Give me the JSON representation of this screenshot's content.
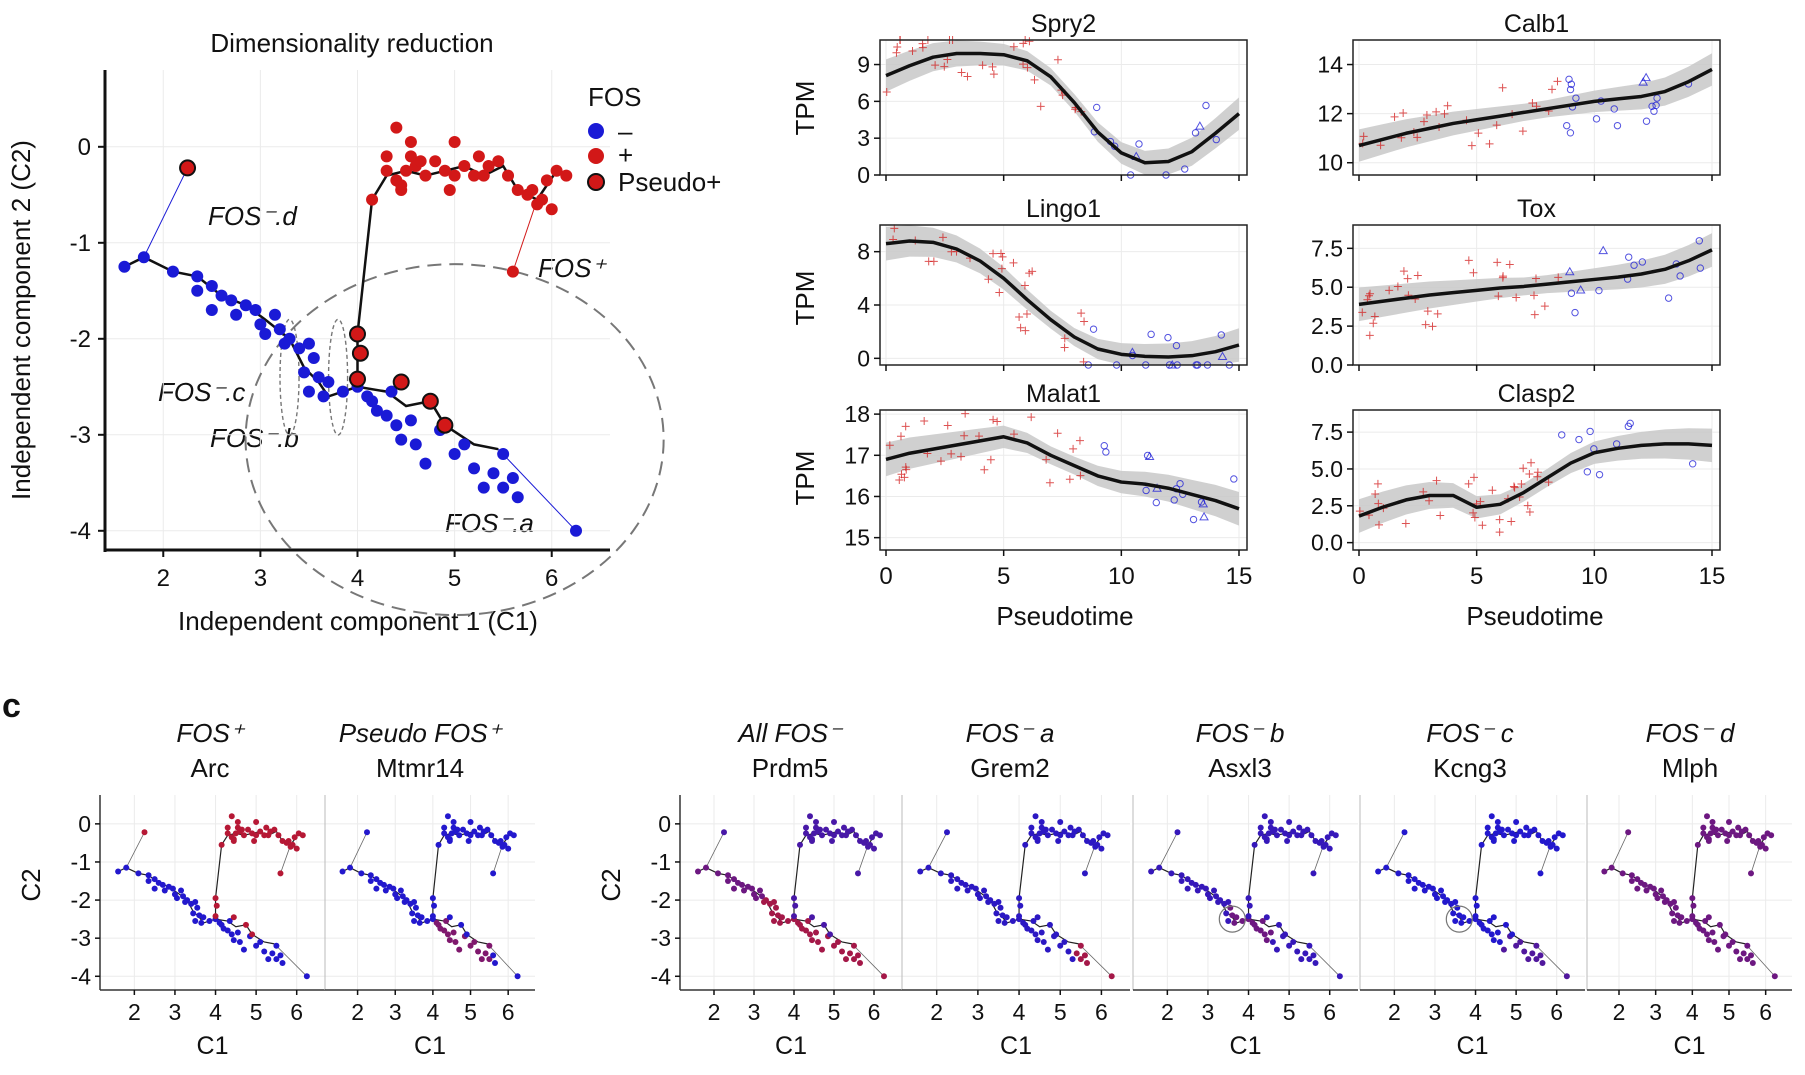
{
  "colors": {
    "fos_neg": "#1a1ad6",
    "fos_pos": "#d21818",
    "smooth": "#111111",
    "ribbon": "#c8c8c8",
    "panel_border": "#222222",
    "grid": "#ebebeb"
  },
  "panel_label_c": "c",
  "panel_a": {
    "title": "Dimensionality reduction",
    "xlabel": "Independent component 1 (C1)",
    "ylabel": "Independent component 2 (C2)",
    "legend": {
      "title": "FOS",
      "items": [
        "–",
        "+",
        "Pseudo+"
      ]
    },
    "annotations": {
      "d": "FOS⁻.d",
      "c": "FOS⁻.c",
      "b": "FOS⁻.b",
      "a": "FOS⁻.a",
      "pos": "FOS⁺"
    }
  },
  "panel_b": {
    "xlabel": "Pseudotime",
    "ylabel": "TPM"
  },
  "panel_c": {
    "xlabel": "C1",
    "ylabel": "C2",
    "cols": [
      {
        "top": "FOS⁺",
        "gene": "Arc"
      },
      {
        "top": "Pseudo FOS⁺",
        "gene": "Mtmr14"
      },
      {
        "top": "All FOS⁻",
        "gene": "Prdm5"
      },
      {
        "top": "FOS⁻ a",
        "gene": "Grem2"
      },
      {
        "top": "FOS⁻ b",
        "gene": "Asxl3"
      },
      {
        "top": "FOS⁻ c",
        "gene": "Kcng3"
      },
      {
        "top": "FOS⁻ d",
        "gene": "Mlph"
      }
    ]
  },
  "chart_data": [
    {
      "type": "scatter",
      "title": "Dimensionality reduction",
      "xlabel": "Independent component 1 (C1)",
      "ylabel": "Independent component 2 (C2)",
      "xlim": [
        1.4,
        6.6
      ],
      "ylim": [
        -4.2,
        0.8
      ],
      "xticks": [
        2,
        3,
        4,
        5,
        6
      ],
      "yticks": [
        0,
        -1,
        -2,
        -3,
        -4
      ],
      "legend_position": "top-right",
      "series": [
        {
          "name": "–",
          "points": [
            [
              1.6,
              -1.25
            ],
            [
              1.8,
              -1.15
            ],
            [
              2.1,
              -1.3
            ],
            [
              2.35,
              -1.35
            ],
            [
              2.35,
              -1.5
            ],
            [
              2.5,
              -1.45
            ],
            [
              2.5,
              -1.7
            ],
            [
              2.6,
              -1.55
            ],
            [
              2.7,
              -1.6
            ],
            [
              2.75,
              -1.75
            ],
            [
              2.85,
              -1.65
            ],
            [
              2.95,
              -1.7
            ],
            [
              3.0,
              -1.85
            ],
            [
              3.05,
              -1.95
            ],
            [
              3.15,
              -1.75
            ],
            [
              3.2,
              -1.9
            ],
            [
              3.25,
              -2.05
            ],
            [
              3.3,
              -2.0
            ],
            [
              3.4,
              -2.1
            ],
            [
              3.45,
              -2.35
            ],
            [
              3.5,
              -2.05
            ],
            [
              3.55,
              -2.2
            ],
            [
              3.6,
              -2.4
            ],
            [
              3.5,
              -2.55
            ],
            [
              3.65,
              -2.6
            ],
            [
              3.7,
              -2.45
            ],
            [
              3.85,
              -2.55
            ],
            [
              4.0,
              -2.5
            ],
            [
              4.1,
              -2.6
            ],
            [
              4.15,
              -2.65
            ],
            [
              4.2,
              -2.75
            ],
            [
              4.3,
              -2.8
            ],
            [
              4.35,
              -2.55
            ],
            [
              4.4,
              -2.9
            ],
            [
              4.45,
              -3.05
            ],
            [
              4.55,
              -2.85
            ],
            [
              4.6,
              -3.1
            ],
            [
              4.7,
              -3.3
            ],
            [
              4.85,
              -2.95
            ],
            [
              5.0,
              -3.2
            ],
            [
              5.1,
              -3.1
            ],
            [
              5.2,
              -3.35
            ],
            [
              5.3,
              -3.55
            ],
            [
              5.4,
              -3.4
            ],
            [
              5.5,
              -3.55
            ],
            [
              5.6,
              -3.45
            ],
            [
              5.65,
              -3.65
            ],
            [
              5.5,
              -3.2
            ],
            [
              6.25,
              -4.0
            ]
          ]
        },
        {
          "name": "+",
          "points": [
            [
              4.15,
              -0.55
            ],
            [
              4.3,
              -0.25
            ],
            [
              4.4,
              -0.35
            ],
            [
              4.45,
              -0.4
            ],
            [
              4.5,
              -0.25
            ],
            [
              4.55,
              -0.1
            ],
            [
              4.6,
              -0.2
            ],
            [
              4.7,
              -0.3
            ],
            [
              4.8,
              -0.15
            ],
            [
              4.9,
              -0.25
            ],
            [
              5.0,
              0.05
            ],
            [
              5.1,
              -0.2
            ],
            [
              5.2,
              -0.3
            ],
            [
              5.25,
              -0.1
            ],
            [
              5.3,
              -0.3
            ],
            [
              5.45,
              -0.15
            ],
            [
              5.55,
              -0.3
            ],
            [
              5.65,
              -0.45
            ],
            [
              5.75,
              -0.5
            ],
            [
              5.85,
              -0.6
            ],
            [
              5.95,
              -0.35
            ],
            [
              6.05,
              -0.25
            ],
            [
              6.15,
              -0.3
            ],
            [
              4.3,
              -0.1
            ],
            [
              4.4,
              0.2
            ],
            [
              4.55,
              0.05
            ],
            [
              5.6,
              -1.3
            ],
            [
              5.35,
              -0.2
            ],
            [
              4.95,
              -0.45
            ],
            [
              4.45,
              -0.45
            ],
            [
              5.8,
              -0.45
            ],
            [
              5.0,
              -0.3
            ],
            [
              4.65,
              -0.15
            ],
            [
              5.9,
              -0.55
            ],
            [
              6.0,
              -0.65
            ]
          ]
        },
        {
          "name": "Pseudo+",
          "points": [
            [
              2.25,
              -0.22
            ],
            [
              4.0,
              -1.95
            ],
            [
              4.03,
              -2.15
            ],
            [
              4.0,
              -2.42
            ],
            [
              4.45,
              -2.45
            ],
            [
              4.75,
              -2.65
            ],
            [
              4.9,
              -2.9
            ]
          ]
        }
      ]
    },
    {
      "type": "scatter",
      "title": "Spry2",
      "xlabel": "",
      "ylabel": "TPM",
      "xlim": [
        0,
        15
      ],
      "ylim": [
        0,
        11
      ],
      "yticks": [
        0,
        3,
        6,
        9
      ],
      "series": [
        {
          "name": "smooth",
          "x": [
            0,
            1,
            2,
            3,
            4,
            5,
            6,
            7,
            8,
            9,
            10,
            11,
            12,
            13,
            14,
            15
          ],
          "y": [
            8.1,
            8.9,
            9.6,
            9.9,
            9.9,
            9.8,
            9.3,
            8.0,
            5.9,
            3.5,
            1.8,
            1.0,
            1.1,
            1.9,
            3.4,
            5.0
          ]
        }
      ]
    },
    {
      "type": "scatter",
      "title": "Calb1",
      "xlabel": "",
      "ylabel": "",
      "xlim": [
        0,
        15
      ],
      "ylim": [
        9.5,
        15
      ],
      "yticks": [
        10,
        12,
        14
      ],
      "series": [
        {
          "name": "smooth",
          "x": [
            0,
            1,
            2,
            3,
            4,
            5,
            6,
            7,
            8,
            9,
            10,
            11,
            12,
            13,
            14,
            15
          ],
          "y": [
            10.7,
            10.95,
            11.2,
            11.4,
            11.6,
            11.75,
            11.9,
            12.05,
            12.2,
            12.35,
            12.5,
            12.6,
            12.7,
            12.9,
            13.3,
            13.8
          ]
        }
      ]
    },
    {
      "type": "scatter",
      "title": "Lingo1",
      "xlabel": "",
      "ylabel": "TPM",
      "xlim": [
        0,
        15
      ],
      "ylim": [
        -0.5,
        10
      ],
      "yticks": [
        0,
        4,
        8
      ],
      "series": [
        {
          "name": "smooth",
          "x": [
            0,
            1,
            2,
            3,
            4,
            5,
            6,
            7,
            8,
            9,
            10,
            11,
            12,
            13,
            14,
            15
          ],
          "y": [
            8.6,
            8.8,
            8.7,
            8.2,
            7.3,
            6.0,
            4.4,
            2.9,
            1.6,
            0.7,
            0.3,
            0.15,
            0.1,
            0.2,
            0.5,
            1.0
          ]
        }
      ]
    },
    {
      "type": "scatter",
      "title": "Tox",
      "xlabel": "",
      "ylabel": "",
      "xlim": [
        0,
        15
      ],
      "ylim": [
        0,
        9
      ],
      "yticks": [
        0.0,
        2.5,
        5.0,
        7.5
      ],
      "series": [
        {
          "name": "smooth",
          "x": [
            0,
            1,
            2,
            3,
            4,
            5,
            6,
            7,
            8,
            9,
            10,
            11,
            12,
            13,
            14,
            15
          ],
          "y": [
            3.9,
            4.1,
            4.3,
            4.5,
            4.65,
            4.8,
            4.95,
            5.05,
            5.2,
            5.35,
            5.5,
            5.65,
            5.85,
            6.15,
            6.7,
            7.4
          ]
        }
      ]
    },
    {
      "type": "scatter",
      "title": "Malat1",
      "xlabel": "Pseudotime",
      "ylabel": "TPM",
      "xlim": [
        0,
        15
      ],
      "ylim": [
        14.7,
        18.1
      ],
      "yticks": [
        15,
        16,
        17,
        18
      ],
      "series": [
        {
          "name": "smooth",
          "x": [
            0,
            1,
            2,
            3,
            4,
            5,
            6,
            7,
            8,
            9,
            10,
            11,
            12,
            13,
            14,
            15
          ],
          "y": [
            16.9,
            17.05,
            17.15,
            17.25,
            17.35,
            17.45,
            17.3,
            17.0,
            16.75,
            16.5,
            16.35,
            16.3,
            16.2,
            16.05,
            15.9,
            15.7
          ]
        }
      ]
    },
    {
      "type": "scatter",
      "title": "Clasp2",
      "xlabel": "Pseudotime",
      "ylabel": "",
      "xlim": [
        0,
        15
      ],
      "ylim": [
        -0.5,
        9
      ],
      "yticks": [
        0.0,
        2.5,
        5.0,
        7.5
      ],
      "series": [
        {
          "name": "smooth",
          "x": [
            0,
            1,
            2,
            3,
            4,
            5,
            6,
            7,
            8,
            9,
            10,
            11,
            12,
            13,
            14,
            15
          ],
          "y": [
            1.8,
            2.4,
            2.9,
            3.2,
            3.2,
            2.4,
            2.6,
            3.4,
            4.4,
            5.4,
            6.1,
            6.4,
            6.6,
            6.7,
            6.7,
            6.6
          ]
        }
      ]
    }
  ]
}
